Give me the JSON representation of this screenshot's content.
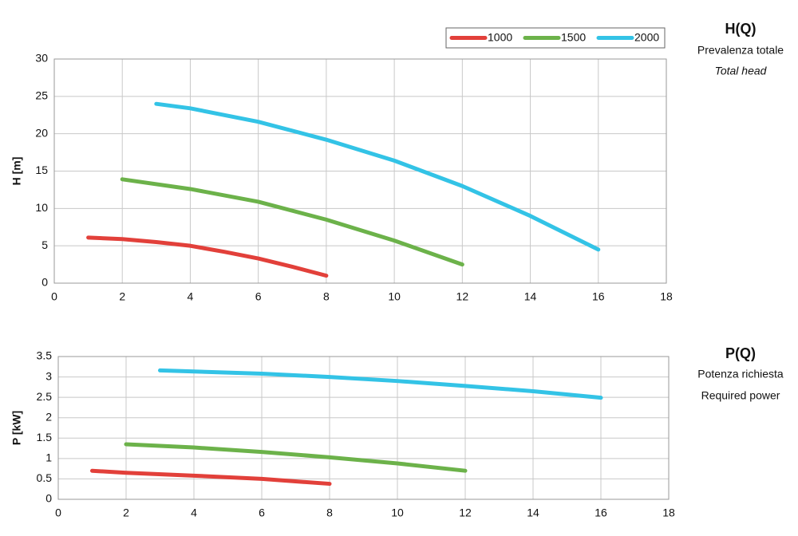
{
  "chart_data": [
    {
      "type": "line",
      "title": "H(Q)",
      "subtitles": [
        "Prevalenza totale",
        "Total head"
      ],
      "y_label": "H [m]",
      "xlim": [
        0,
        18
      ],
      "xticks": [
        0,
        2,
        4,
        6,
        8,
        10,
        12,
        14,
        16,
        18
      ],
      "ylim": [
        0,
        30
      ],
      "yticks": [
        0,
        5,
        10,
        15,
        20,
        25,
        30
      ],
      "grid": true,
      "legend": "top-right",
      "series": [
        {
          "name": "1000",
          "color": "#e2403a",
          "x": [
            1,
            2,
            3,
            4,
            5,
            6,
            7,
            8
          ],
          "values": [
            6.1,
            5.9,
            5.5,
            5.0,
            4.2,
            3.3,
            2.2,
            1.0
          ]
        },
        {
          "name": "1500",
          "color": "#6cb24a",
          "x": [
            2,
            4,
            6,
            8,
            10,
            12
          ],
          "values": [
            13.9,
            12.6,
            10.9,
            8.5,
            5.7,
            2.5
          ]
        },
        {
          "name": "2000",
          "color": "#33c3e6",
          "x": [
            3,
            4,
            6,
            8,
            10,
            12,
            14,
            16
          ],
          "values": [
            24,
            23.4,
            21.6,
            19.2,
            16.4,
            13.0,
            9.0,
            4.5
          ]
        }
      ]
    },
    {
      "type": "line",
      "title": "P(Q)",
      "subtitles": [
        "Potenza richiesta",
        "Required power"
      ],
      "y_label": "P [kW]",
      "xlim": [
        0,
        18
      ],
      "xticks": [
        0,
        2,
        4,
        6,
        8,
        10,
        12,
        14,
        16,
        18
      ],
      "ylim": [
        0,
        3.5
      ],
      "yticks": [
        0,
        0.5,
        1,
        1.5,
        2,
        2.5,
        3,
        3.5
      ],
      "grid": true,
      "series": [
        {
          "color": "#e2403a",
          "x": [
            1,
            2,
            4,
            6,
            8
          ],
          "values": [
            0.7,
            0.65,
            0.58,
            0.5,
            0.38
          ]
        },
        {
          "color": "#6cb24a",
          "x": [
            2,
            4,
            6,
            8,
            10,
            12
          ],
          "values": [
            1.35,
            1.27,
            1.16,
            1.03,
            0.88,
            0.7
          ]
        },
        {
          "color": "#33c3e6",
          "x": [
            3,
            6,
            8,
            10,
            12,
            14,
            16
          ],
          "values": [
            3.16,
            3.08,
            3.0,
            2.9,
            2.78,
            2.65,
            2.49
          ]
        }
      ]
    }
  ]
}
